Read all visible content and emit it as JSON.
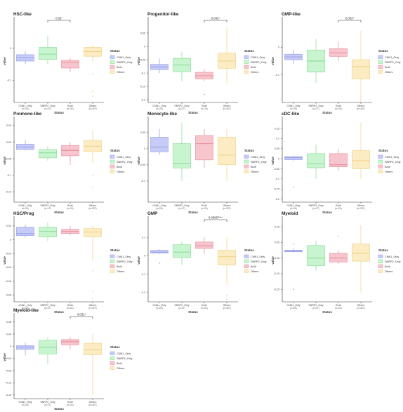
{
  "legend": {
    "title": "Status",
    "items": [
      {
        "label": "CNN1_Only",
        "fill": "#c7ccf7",
        "stroke": "#8f98e6"
      },
      {
        "label": "SNRP2_Only",
        "fill": "#c8f5cf",
        "stroke": "#7fd98f"
      },
      {
        "label": "Both",
        "fill": "#f7c5cd",
        "stroke": "#e48a98"
      },
      {
        "label": "Others",
        "fill": "#fbecc4",
        "stroke": "#efcf7f"
      }
    ]
  },
  "x_axis": {
    "title": "Status",
    "categories": [
      "CNN1_Only",
      "SNRP2_Only",
      "Both",
      "Others"
    ],
    "counts": [
      "(n=24)",
      "(n=17)",
      "(n=24)",
      "(n=307)"
    ]
  },
  "y_axis_title": "value",
  "chart_data": [
    {
      "type": "box",
      "title": "HSC-like",
      "ylim": [
        -0.17,
        0.09
      ],
      "ticks": [
        0,
        -0.1
      ],
      "boxes": [
        {
          "q1": -0.04,
          "median": -0.03,
          "q3": -0.02,
          "wlo": -0.05,
          "whi": -0.01,
          "outliers": []
        },
        {
          "q1": -0.035,
          "median": -0.018,
          "q3": 0.003,
          "wlo": -0.05,
          "whi": 0.04,
          "outliers": []
        },
        {
          "q1": -0.062,
          "median": -0.045,
          "q3": -0.038,
          "wlo": -0.075,
          "whi": -0.03,
          "outliers": []
        },
        {
          "q1": -0.025,
          "median": -0.01,
          "q3": 0.003,
          "wlo": -0.04,
          "whi": 0.01,
          "outliers": [
            -0.08,
            -0.135,
            -0.15
          ]
        }
      ],
      "significance": {
        "from": 1,
        "to": 2,
        "label": "0.02*"
      }
    },
    {
      "type": "box",
      "title": "Progenitor-like",
      "ylim": [
        -0.21,
        0.1
      ],
      "ticks": [
        0.05,
        0,
        -0.05,
        -0.1,
        -0.15,
        -0.2
      ],
      "boxes": [
        {
          "q1": -0.087,
          "median": -0.077,
          "q3": -0.067,
          "wlo": -0.1,
          "whi": -0.045,
          "outliers": []
        },
        {
          "q1": -0.095,
          "median": -0.07,
          "q3": -0.045,
          "wlo": -0.13,
          "whi": -0.02,
          "outliers": []
        },
        {
          "q1": -0.122,
          "median": -0.11,
          "q3": -0.097,
          "wlo": -0.13,
          "whi": -0.085,
          "outliers": [
            -0.18
          ]
        },
        {
          "q1": -0.082,
          "median": -0.055,
          "q3": -0.025,
          "wlo": -0.14,
          "whi": 0.07,
          "outliers": []
        }
      ],
      "significance": {
        "from": 2,
        "to": 3,
        "label": "0.042*"
      }
    },
    {
      "type": "box",
      "title": "GMP-like",
      "ylim": [
        -0.2,
        0.1
      ],
      "ticks": [
        0,
        -0.1
      ],
      "boxes": [
        {
          "q1": -0.045,
          "median": -0.035,
          "q3": -0.025,
          "wlo": -0.06,
          "whi": -0.01,
          "outliers": []
        },
        {
          "q1": -0.09,
          "median": -0.05,
          "q3": -0.01,
          "wlo": -0.13,
          "whi": 0.03,
          "outliers": []
        },
        {
          "q1": -0.033,
          "median": -0.02,
          "q3": -0.005,
          "wlo": -0.05,
          "whi": 0.02,
          "outliers": []
        },
        {
          "q1": -0.115,
          "median": -0.07,
          "q3": -0.045,
          "wlo": -0.2,
          "whi": 0.06,
          "outliers": []
        }
      ],
      "significance": {
        "from": 2,
        "to": 3,
        "label": "0.032*"
      }
    },
    {
      "type": "box",
      "title": "Promono-like",
      "ylim": [
        -0.165,
        0.035
      ],
      "ticks": [
        0.02,
        -0.02,
        -0.06,
        -0.1,
        -0.14
      ],
      "boxes": [
        {
          "q1": -0.038,
          "median": -0.032,
          "q3": -0.025,
          "wlo": -0.04,
          "whi": -0.015,
          "outliers": []
        },
        {
          "q1": -0.058,
          "median": -0.046,
          "q3": -0.038,
          "wlo": -0.065,
          "whi": -0.03,
          "outliers": []
        },
        {
          "q1": -0.053,
          "median": -0.04,
          "q3": -0.028,
          "wlo": -0.075,
          "whi": -0.02,
          "outliers": []
        },
        {
          "q1": -0.043,
          "median": -0.03,
          "q3": -0.016,
          "wlo": -0.07,
          "whi": 0.008,
          "outliers": [
            -0.1,
            -0.13
          ]
        }
      ]
    },
    {
      "type": "box",
      "title": "Monocyte-like",
      "ylim": [
        -0.165,
        0.09
      ],
      "ticks": [
        0.05,
        0,
        -0.05,
        -0.1
      ],
      "boxes": [
        {
          "q1": -0.01,
          "median": 0.005,
          "q3": 0.035,
          "wlo": -0.02,
          "whi": 0.06,
          "outliers": []
        },
        {
          "q1": -0.06,
          "median": -0.045,
          "q3": 0.015,
          "wlo": -0.1,
          "whi": 0.08,
          "outliers": []
        },
        {
          "q1": -0.035,
          "median": 0.015,
          "q3": 0.04,
          "wlo": -0.06,
          "whi": 0.06,
          "outliers": []
        },
        {
          "q1": -0.05,
          "median": -0.02,
          "q3": 0.035,
          "wlo": -0.1,
          "whi": 0.06,
          "outliers": []
        }
      ]
    },
    {
      "type": "box",
      "title": "cDC-like",
      "ylim": [
        -0.215,
        0.195
      ],
      "ticks": [
        0.15,
        0.1,
        0.05,
        0,
        -0.05,
        -0.1,
        -0.15,
        -0.2
      ],
      "boxes": [
        {
          "q1": -0.005,
          "median": 0.005,
          "q3": 0.01,
          "wlo": -0.01,
          "whi": 0.015,
          "outliers": [
            -0.14
          ]
        },
        {
          "q1": -0.045,
          "median": -0.025,
          "q3": 0.025,
          "wlo": -0.1,
          "whi": 0.07,
          "outliers": []
        },
        {
          "q1": -0.04,
          "median": -0.03,
          "q3": 0.025,
          "wlo": -0.06,
          "whi": 0.05,
          "outliers": []
        },
        {
          "q1": -0.05,
          "median": -0.01,
          "q3": 0.04,
          "wlo": -0.1,
          "whi": 0.18,
          "outliers": []
        }
      ]
    },
    {
      "type": "box",
      "title": "HSC/Prog",
      "ylim": [
        -0.09,
        0.03
      ],
      "ticks": [
        0.02,
        0,
        -0.02,
        -0.04,
        -0.06,
        -0.08
      ],
      "boxes": [
        {
          "q1": 0.006,
          "median": 0.009,
          "q3": 0.018,
          "wlo": 0.003,
          "whi": 0.022,
          "outliers": []
        },
        {
          "q1": 0.004,
          "median": 0.012,
          "q3": 0.018,
          "wlo": -0.002,
          "whi": 0.025,
          "outliers": []
        },
        {
          "q1": 0.009,
          "median": 0.012,
          "q3": 0.015,
          "wlo": 0.006,
          "whi": 0.02,
          "outliers": []
        },
        {
          "q1": 0.004,
          "median": 0.011,
          "q3": 0.016,
          "wlo": -0.03,
          "whi": 0.02,
          "outliers": [
            -0.045,
            -0.075,
            -0.085
          ]
        }
      ]
    },
    {
      "type": "box",
      "title": "GMP",
      "ylim": [
        -0.25,
        0.2
      ],
      "ticks": [
        0.1,
        0,
        -0.1,
        -0.2
      ],
      "boxes": [
        {
          "q1": 0.015,
          "median": 0.02,
          "q3": 0.03,
          "wlo": 0.01,
          "whi": 0.035,
          "outliers": [
            -0.04
          ]
        },
        {
          "q1": -0.01,
          "median": 0.02,
          "q3": 0.06,
          "wlo": -0.05,
          "whi": 0.08,
          "outliers": []
        },
        {
          "q1": 0.04,
          "median": 0.055,
          "q3": 0.075,
          "wlo": 0.01,
          "whi": 0.1,
          "outliers": []
        },
        {
          "q1": -0.05,
          "median": -0.005,
          "q3": 0.03,
          "wlo": -0.16,
          "whi": 0.1,
          "outliers": [
            -0.215,
            -0.235
          ]
        }
      ],
      "significance": {
        "from": 2,
        "to": 3,
        "label": "0.00067***"
      }
    },
    {
      "type": "box",
      "title": "Myeloid",
      "ylim": [
        -0.33,
        0.2
      ],
      "ticks": [
        0.15,
        0.05,
        -0.05,
        -0.15,
        -0.25
      ],
      "boxes": [
        {
          "q1": -0.01,
          "median": -0.005,
          "q3": 0.0,
          "wlo": -0.015,
          "whi": 0.01,
          "outliers": [
            0.04,
            -0.25
          ]
        },
        {
          "q1": -0.1,
          "median": -0.05,
          "q3": 0.03,
          "wlo": -0.13,
          "whi": 0.06,
          "outliers": []
        },
        {
          "q1": -0.075,
          "median": -0.05,
          "q3": -0.02,
          "wlo": -0.09,
          "whi": 0.0,
          "outliers": [
            0.09
          ]
        },
        {
          "q1": -0.07,
          "median": -0.02,
          "q3": 0.04,
          "wlo": -0.27,
          "whi": 0.16,
          "outliers": []
        }
      ]
    },
    {
      "type": "box",
      "title": "Myeloid-like",
      "ylim": [
        -0.172,
        0.1
      ],
      "ticks": [
        0.08,
        0.04,
        0,
        -0.04,
        -0.08,
        -0.12,
        -0.16
      ],
      "boxes": [
        {
          "q1": -0.01,
          "median": -0.003,
          "q3": 0.002,
          "wlo": -0.03,
          "whi": 0.012,
          "outliers": []
        },
        {
          "q1": -0.025,
          "median": -0.003,
          "q3": 0.02,
          "wlo": -0.06,
          "whi": 0.03,
          "outliers": []
        },
        {
          "q1": 0.005,
          "median": 0.015,
          "q3": 0.022,
          "wlo": -0.01,
          "whi": 0.03,
          "outliers": []
        },
        {
          "q1": -0.028,
          "median": -0.012,
          "q3": 0.01,
          "wlo": -0.16,
          "whi": 0.04,
          "outliers": []
        }
      ],
      "significance": {
        "from": 2,
        "to": 3,
        "label": "0.031*"
      }
    }
  ]
}
